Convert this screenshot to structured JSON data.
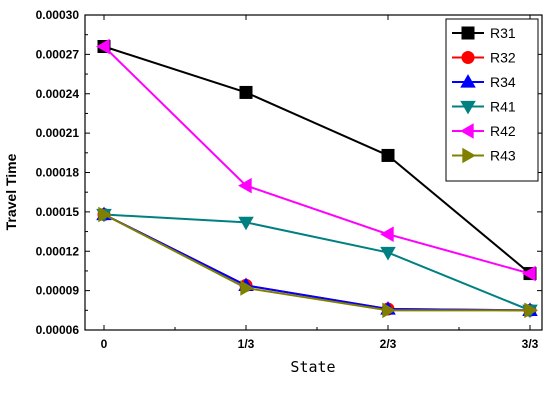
{
  "chart_data": {
    "type": "line",
    "title": "",
    "xlabel": "State",
    "ylabel": "Travel Time",
    "categories": [
      "0",
      "1/3",
      "2/3",
      "3/3"
    ],
    "ylim": [
      6e-05,
      0.0003
    ],
    "yticks": [
      "0.00006",
      "0.00009",
      "0.00012",
      "0.00015",
      "0.00018",
      "0.00021",
      "0.00024",
      "0.00027",
      "0.00030"
    ],
    "ytick_values": [
      6e-05,
      9e-05,
      0.00012,
      0.00015,
      0.00018,
      0.00021,
      0.00024,
      0.00027,
      0.0003
    ],
    "grid": false,
    "legend_position": "top-right",
    "series": [
      {
        "name": "R31",
        "color": "#000000",
        "marker": "square",
        "values": [
          0.000276,
          0.000241,
          0.000193,
          0.000103
        ]
      },
      {
        "name": "R32",
        "color": "#ff0000",
        "marker": "circle",
        "values": [
          0.000148,
          9.4e-05,
          7.6e-05,
          7.5e-05
        ]
      },
      {
        "name": "R34",
        "color": "#0000ff",
        "marker": "triangle-up",
        "values": [
          0.000148,
          9.4e-05,
          7.6e-05,
          7.5e-05
        ]
      },
      {
        "name": "R41",
        "color": "#008080",
        "marker": "triangle-down",
        "values": [
          0.000148,
          0.000142,
          0.000119,
          7.5e-05
        ]
      },
      {
        "name": "R42",
        "color": "#ff00ff",
        "marker": "triangle-left",
        "values": [
          0.000276,
          0.00017,
          0.000133,
          0.000103
        ]
      },
      {
        "name": "R43",
        "color": "#808000",
        "marker": "triangle-right",
        "values": [
          0.000148,
          9.2e-05,
          7.5e-05,
          7.5e-05
        ]
      }
    ]
  }
}
